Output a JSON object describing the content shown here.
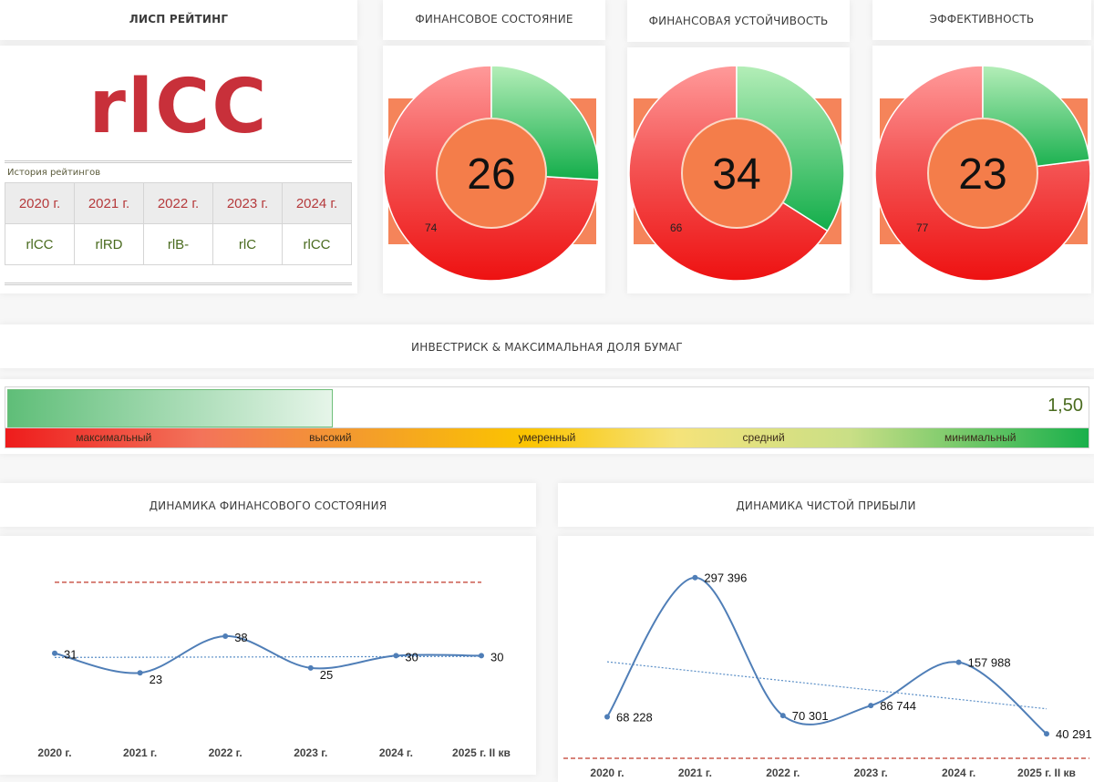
{
  "rating_card": {
    "title": "ЛИСП РЕЙТИНГ",
    "rating": "rlCC",
    "history_label": "История рейтингов",
    "history_years": [
      "2020 г.",
      "2021 г.",
      "2022 г.",
      "2023 г.",
      "2024 г."
    ],
    "history_values": [
      "rlCC",
      "rlRD",
      "rlB-",
      "rlC",
      "rlCC"
    ]
  },
  "gauges": [
    {
      "title": "ФИНАНСОВОЕ СОСТОЯНИЕ",
      "score": "26",
      "rest_label": "74",
      "score_value": 26
    },
    {
      "title": "ФИНАНСОВАЯ УСТОЙЧИВОСТЬ",
      "score": "34",
      "rest_label": "66",
      "score_value": 34
    },
    {
      "title": "ЭФФЕКТИВНОСТЬ",
      "score": "23",
      "rest_label": "77",
      "score_value": 23
    }
  ],
  "investrisk": {
    "title": "ИНВЕСТРИСК & МАКСИМАЛЬНАЯ ДОЛЯ БУМАГ",
    "value": "1,50",
    "fill_fraction": 0.3,
    "scale_labels": [
      "максимальный",
      "высокий",
      "умеренный",
      "средний",
      "минимальный"
    ]
  },
  "colors": {
    "red": "#ef1c1c",
    "green": "#1cae4e",
    "center": "#f4784a",
    "line": "#4f7eb7",
    "target": "#c0392b"
  },
  "chart_data": [
    {
      "type": "line",
      "title": "ДИНАМИКА ФИНАНСОВОГО СОСТОЯНИЯ",
      "categories": [
        "2020 г.",
        "2021 г.",
        "2022 г.",
        "2023 г.",
        "2024 г.",
        "2025 г. II кв"
      ],
      "values": [
        31,
        23,
        38,
        25,
        30,
        30
      ],
      "value_labels": [
        "31",
        "23",
        "38",
        "25",
        "30",
        "30"
      ],
      "trendline": true,
      "ylim": [
        0,
        70
      ],
      "reference_line": 60
    },
    {
      "type": "line",
      "title": "ДИНАМИКА ЧИСТОЙ ПРИБЫЛИ",
      "categories": [
        "2020 г.",
        "2021 г.",
        "2022 г.",
        "2023 г.",
        "2024 г.",
        "2025 г. II кв"
      ],
      "values": [
        68228,
        297396,
        70301,
        86744,
        157988,
        40291
      ],
      "value_labels": [
        "68 228",
        "297 396",
        "70 301",
        "86 744",
        "157 988",
        "40 291"
      ],
      "trendline": true,
      "ylim": [
        0,
        330000
      ],
      "reference_line": 0
    }
  ]
}
